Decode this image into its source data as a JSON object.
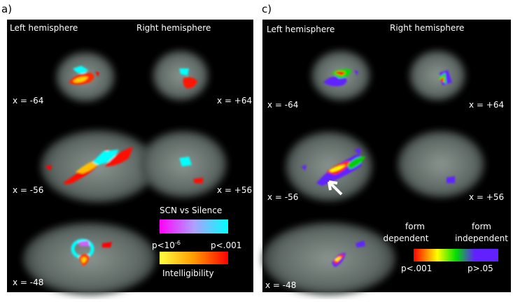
{
  "panels": [
    {
      "label": "a)",
      "left_heading": "Left hemisphere",
      "right_heading": "Right hemisphere",
      "slices": [
        "x = -64",
        "x = +64",
        "x = -56",
        "x = +56",
        "x = -48"
      ],
      "legend": {
        "title": "SCN vs Silence",
        "low": {
          "base": "p<10",
          "exponent": "-6"
        },
        "high": "p<.001",
        "subtitle": "Intelligibility"
      }
    },
    {
      "label": "c)",
      "left_heading": "Left hemisphere",
      "right_heading": "Right hemisphere",
      "slices": [
        "x = -64",
        "x = +64",
        "x = -56",
        "x = +56",
        "x = -48"
      ],
      "legend": {
        "left_title": [
          "form",
          "dependent"
        ],
        "right_title": [
          "form",
          "independent"
        ],
        "low": "p<.001",
        "high": "p>.05"
      }
    }
  ]
}
